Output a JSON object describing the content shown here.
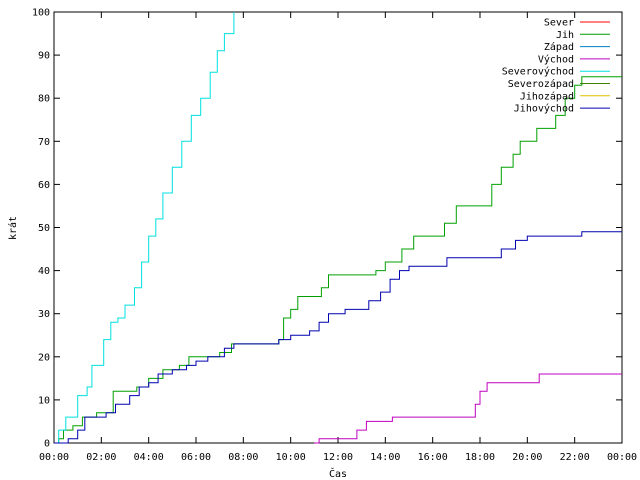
{
  "chart_data": {
    "type": "line",
    "title": "",
    "xlabel": "Čas",
    "ylabel": "krát",
    "xlim": [
      0,
      24
    ],
    "ylim": [
      0,
      100
    ],
    "grid": false,
    "legend_position": "top-right",
    "x_unit": "hours",
    "xticks": [
      {
        "value": 0,
        "label": "00:00"
      },
      {
        "value": 2,
        "label": "02:00"
      },
      {
        "value": 4,
        "label": "04:00"
      },
      {
        "value": 6,
        "label": "06:00"
      },
      {
        "value": 8,
        "label": "08:00"
      },
      {
        "value": 10,
        "label": "10:00"
      },
      {
        "value": 12,
        "label": "12:00"
      },
      {
        "value": 14,
        "label": "14:00"
      },
      {
        "value": 16,
        "label": "16:00"
      },
      {
        "value": 18,
        "label": "18:00"
      },
      {
        "value": 20,
        "label": "20:00"
      },
      {
        "value": 22,
        "label": "22:00"
      },
      {
        "value": 24,
        "label": "00:00"
      }
    ],
    "yticks": [
      0,
      10,
      20,
      30,
      40,
      50,
      60,
      70,
      80,
      90,
      100
    ],
    "series": [
      {
        "name": "Sever",
        "color": "#ff0000",
        "points": []
      },
      {
        "name": "Jih",
        "color": "#00a000",
        "points": [
          [
            0,
            0
          ],
          [
            0.2,
            1
          ],
          [
            0.4,
            3
          ],
          [
            0.8,
            4
          ],
          [
            1.2,
            6
          ],
          [
            1.8,
            7
          ],
          [
            2.5,
            12
          ],
          [
            3.5,
            13
          ],
          [
            4.0,
            15
          ],
          [
            4.6,
            17
          ],
          [
            5.3,
            18
          ],
          [
            5.7,
            20
          ],
          [
            7.0,
            21
          ],
          [
            7.5,
            23
          ],
          [
            9.5,
            24
          ],
          [
            9.7,
            29
          ],
          [
            10.0,
            31
          ],
          [
            10.3,
            34
          ],
          [
            11.3,
            36
          ],
          [
            11.6,
            39
          ],
          [
            13.6,
            40
          ],
          [
            14.0,
            42
          ],
          [
            14.7,
            45
          ],
          [
            15.2,
            48
          ],
          [
            16.5,
            51
          ],
          [
            17.0,
            55
          ],
          [
            18.5,
            60
          ],
          [
            18.9,
            64
          ],
          [
            19.4,
            67
          ],
          [
            19.7,
            70
          ],
          [
            20.4,
            73
          ],
          [
            21.2,
            76
          ],
          [
            21.6,
            80
          ],
          [
            22.0,
            83
          ],
          [
            22.3,
            85
          ],
          [
            24,
            85
          ]
        ]
      },
      {
        "name": "Západ",
        "color": "#0080c0",
        "points": []
      },
      {
        "name": "Východ",
        "color": "#c000c0",
        "points": [
          [
            11.0,
            0
          ],
          [
            11.2,
            1
          ],
          [
            12.8,
            3
          ],
          [
            13.2,
            5
          ],
          [
            14.3,
            6
          ],
          [
            17.8,
            9
          ],
          [
            18.0,
            12
          ],
          [
            18.3,
            14
          ],
          [
            20.5,
            16
          ],
          [
            24,
            16
          ]
        ]
      },
      {
        "name": "Severovýchod",
        "color": "#00e0e0",
        "points": [
          [
            0,
            0
          ],
          [
            0.2,
            3
          ],
          [
            0.5,
            6
          ],
          [
            1.0,
            11
          ],
          [
            1.4,
            13
          ],
          [
            1.6,
            18
          ],
          [
            2.1,
            24
          ],
          [
            2.4,
            28
          ],
          [
            2.7,
            29
          ],
          [
            3.0,
            32
          ],
          [
            3.4,
            36
          ],
          [
            3.7,
            42
          ],
          [
            4.0,
            48
          ],
          [
            4.3,
            52
          ],
          [
            4.6,
            58
          ],
          [
            5.0,
            64
          ],
          [
            5.4,
            70
          ],
          [
            5.8,
            76
          ],
          [
            6.2,
            80
          ],
          [
            6.6,
            86
          ],
          [
            6.9,
            91
          ],
          [
            7.2,
            95
          ],
          [
            7.6,
            100
          ]
        ]
      },
      {
        "name": "Severozápad",
        "color": "#408000",
        "points": []
      },
      {
        "name": "Jihozápad",
        "color": "#e0c000",
        "points": []
      },
      {
        "name": "Jihovýchod",
        "color": "#0000b0",
        "points": [
          [
            0,
            0
          ],
          [
            0.6,
            1
          ],
          [
            1.0,
            3
          ],
          [
            1.3,
            6
          ],
          [
            2.2,
            7
          ],
          [
            2.6,
            9
          ],
          [
            3.2,
            11
          ],
          [
            3.6,
            13
          ],
          [
            4.0,
            14
          ],
          [
            4.4,
            16
          ],
          [
            5.0,
            17
          ],
          [
            5.6,
            18
          ],
          [
            6.0,
            19
          ],
          [
            6.5,
            20
          ],
          [
            7.2,
            22
          ],
          [
            7.6,
            23
          ],
          [
            9.5,
            24
          ],
          [
            10.0,
            25
          ],
          [
            10.8,
            26
          ],
          [
            11.2,
            28
          ],
          [
            11.6,
            30
          ],
          [
            12.3,
            31
          ],
          [
            13.3,
            33
          ],
          [
            13.8,
            35
          ],
          [
            14.2,
            38
          ],
          [
            14.6,
            40
          ],
          [
            15.0,
            41
          ],
          [
            16.6,
            43
          ],
          [
            18.9,
            45
          ],
          [
            19.5,
            47
          ],
          [
            20.0,
            48
          ],
          [
            22.3,
            49
          ],
          [
            24,
            49
          ]
        ]
      }
    ]
  }
}
